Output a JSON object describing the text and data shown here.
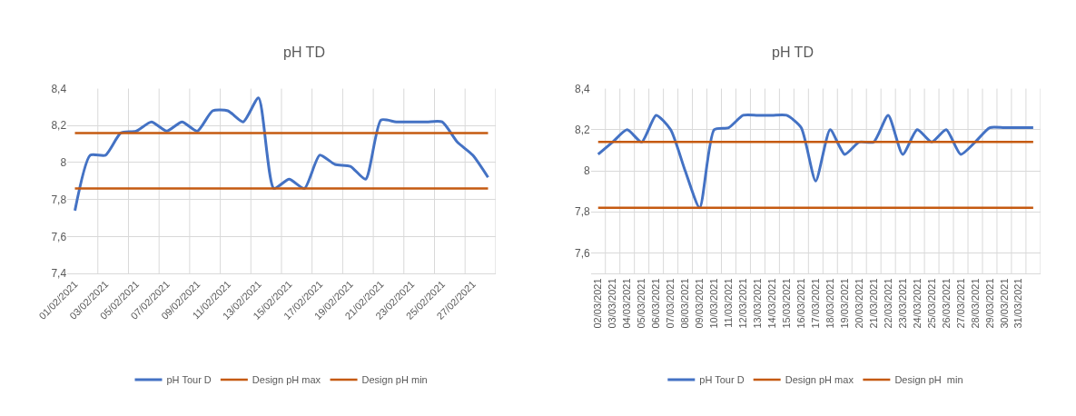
{
  "chart_data": [
    {
      "type": "line",
      "title": "pH TD",
      "categories": [
        "01/02/2021",
        null,
        "03/02/2021",
        null,
        "05/02/2021",
        null,
        "07/02/2021",
        null,
        "09/02/2021",
        null,
        "11/02/2021",
        null,
        "13/02/2021",
        null,
        "15/02/2021",
        null,
        "17/02/2021",
        null,
        "19/02/2021",
        null,
        "21/02/2021",
        null,
        "23/02/2021",
        null,
        "25/02/2021",
        null,
        "27/02/2021",
        null
      ],
      "series": [
        {
          "name": "pH Tour D",
          "color": "#4472c4",
          "values": [
            7.74,
            8.04,
            8.04,
            8.16,
            8.17,
            8.22,
            8.17,
            8.22,
            8.17,
            8.28,
            8.28,
            8.22,
            8.35,
            7.86,
            7.91,
            7.86,
            8.04,
            7.99,
            7.98,
            7.91,
            8.23,
            8.22,
            8.22,
            8.22,
            8.22,
            8.11,
            8.04,
            7.92
          ]
        }
      ],
      "ref_lines": [
        {
          "axis": "y",
          "value": 8.16,
          "label": "Design pH max",
          "color": "#c55a11"
        },
        {
          "axis": "y",
          "value": 7.86,
          "label": "Design pH min",
          "color": "#c55a11"
        }
      ],
      "ylim": [
        7.4,
        8.4
      ],
      "yticks": [
        {
          "value": 7.4,
          "label": "7,4"
        },
        {
          "value": 7.6,
          "label": "7,6"
        },
        {
          "value": 7.8,
          "label": "7,8"
        },
        8,
        {
          "value": 8.2,
          "label": "8,2"
        },
        {
          "value": 8.4,
          "label": "8,4"
        }
      ],
      "grid": true,
      "legend": "bottom",
      "marker": "none",
      "line_style": "solid"
    },
    {
      "type": "line",
      "title": "pH TD",
      "categories": [
        "02/03/2021",
        "03/03/2021",
        "04/03/2021",
        "05/03/2021",
        "06/03/2021",
        "07/03/2021",
        "08/03/2021",
        "09/03/2021",
        "10/03/2021",
        "11/03/2021",
        "12/03/2021",
        "13/03/2021",
        "14/03/2021",
        "15/03/2021",
        "16/03/2021",
        "17/03/2021",
        "18/03/2021",
        "19/03/2021",
        "20/03/2021",
        "21/03/2021",
        "22/03/2021",
        "23/03/2021",
        "24/03/2021",
        "25/03/2021",
        "26/03/2021",
        "27/03/2021",
        "28/03/2021",
        "29/03/2021",
        "30/03/2021",
        "31/03/2021",
        null
      ],
      "series": [
        {
          "name": "pH Tour D",
          "color": "#4472c4",
          "values": [
            8.08,
            8.14,
            8.2,
            8.14,
            8.27,
            8.2,
            8.0,
            7.82,
            8.2,
            8.21,
            8.27,
            8.27,
            8.27,
            8.27,
            8.21,
            7.95,
            8.2,
            8.08,
            8.14,
            8.14,
            8.27,
            8.08,
            8.2,
            8.14,
            8.2,
            8.08,
            8.14,
            8.21,
            8.21,
            8.21,
            8.21
          ]
        }
      ],
      "ref_lines": [
        {
          "axis": "y",
          "value": 8.14,
          "label": "Design pH max",
          "color": "#c55a11"
        },
        {
          "axis": "y",
          "value": 7.82,
          "label": "Design pH  min",
          "color": "#c55a11"
        }
      ],
      "ylim": [
        7.5,
        8.4
      ],
      "yticks": [
        {
          "value": 7.6,
          "label": "7,6"
        },
        {
          "value": 7.8,
          "label": "7,8"
        },
        8,
        {
          "value": 8.2,
          "label": "8,2"
        },
        {
          "value": 8.4,
          "label": "8,4"
        }
      ],
      "grid": true,
      "legend": "bottom",
      "marker": "none",
      "line_style": "solid"
    }
  ]
}
